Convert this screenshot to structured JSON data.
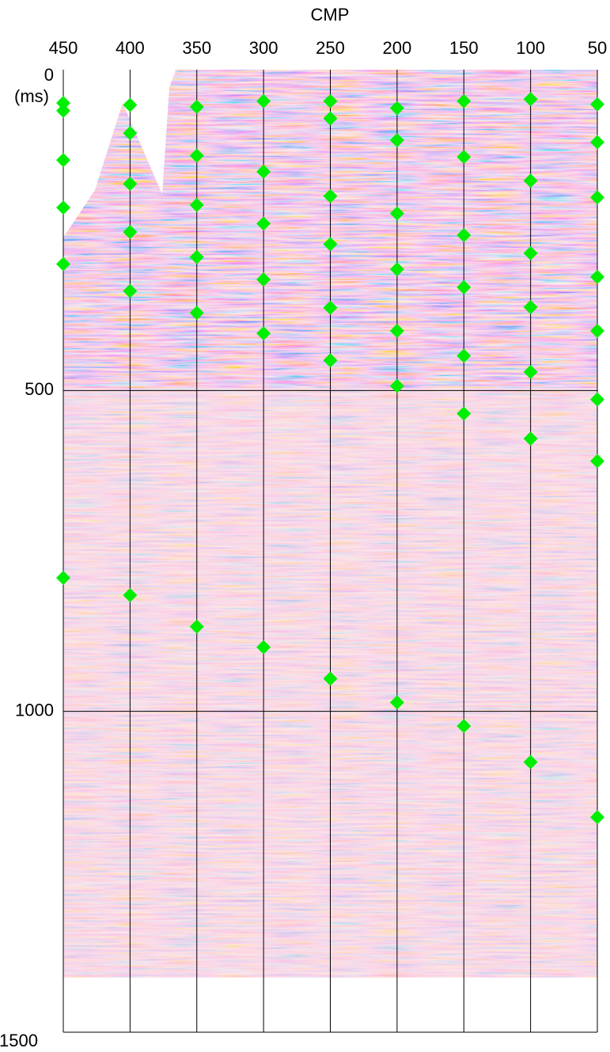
{
  "chart_data": {
    "type": "scatter",
    "xlabel": "CMP",
    "ylabel": "(ms)",
    "xlim": [
      450,
      50
    ],
    "xticks": [
      450,
      400,
      350,
      300,
      250,
      200,
      150,
      100,
      50
    ],
    "ylim": [
      1500,
      0
    ],
    "yticks": [
      0,
      500,
      1000,
      1500
    ],
    "grid": true,
    "series": [
      {
        "color": "#00ee00",
        "x": [
          450,
          450,
          450,
          450,
          450,
          450,
          400,
          400,
          400,
          400,
          400,
          400,
          350,
          350,
          350,
          350,
          350,
          350,
          300,
          300,
          300,
          300,
          300,
          300,
          250,
          250,
          250,
          250,
          250,
          250,
          250,
          200,
          200,
          200,
          200,
          200,
          200,
          200,
          150,
          150,
          150,
          150,
          150,
          150,
          150,
          100,
          100,
          100,
          100,
          100,
          100,
          100,
          50,
          50,
          50,
          50,
          50,
          50,
          50,
          50
        ],
        "y": [
          52,
          64,
          141,
          215,
          303,
          792,
          55,
          99,
          178,
          253,
          345,
          819,
          58,
          134,
          211,
          292,
          379,
          868,
          49,
          159,
          240,
          327,
          411,
          900,
          49,
          76,
          197,
          272,
          371,
          453,
          949,
          60,
          110,
          224,
          311,
          407,
          493,
          986,
          49,
          136,
          258,
          339,
          446,
          536,
          1023,
          46,
          173,
          286,
          370,
          471,
          575,
          1079,
          54,
          113,
          199,
          323,
          407,
          514,
          610,
          1165
        ]
      }
    ]
  }
}
